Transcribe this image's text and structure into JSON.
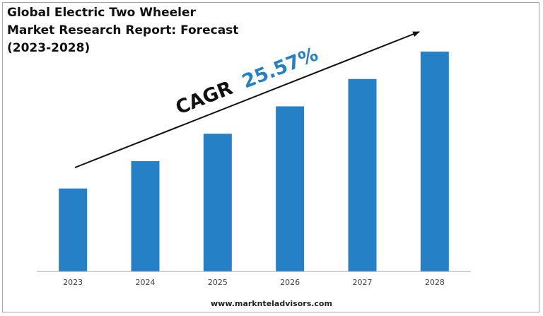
{
  "chart_data": {
    "type": "bar",
    "title_lines": [
      "Global Electric Two Wheeler",
      "Market Research Report: Forecast",
      "(2023-2028)"
    ],
    "categories": [
      "2023",
      "2024",
      "2025",
      "2026",
      "2027",
      "2028"
    ],
    "values": [
      1.0,
      1.33,
      1.66,
      1.99,
      2.32,
      2.65
    ],
    "ylim": [
      0,
      2.65
    ],
    "grid": false,
    "xlabel": "",
    "ylabel": "",
    "annotation": {
      "prefix": "CAGR",
      "value": "25.57%"
    }
  },
  "colors": {
    "bar": "#2680c6",
    "cagr_value": "#2680c6",
    "cagr_prefix": "#111111",
    "arrow": "#111111",
    "axis": "#a6a6a6"
  },
  "footer": {
    "website": "www.marknteladvisors.com"
  }
}
